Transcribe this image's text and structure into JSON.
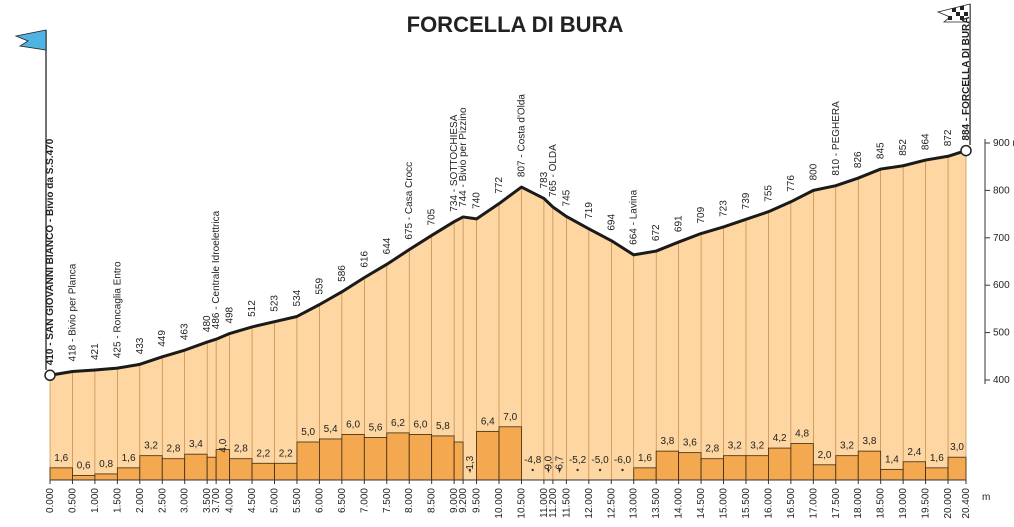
{
  "chart_data": {
    "type": "area",
    "title": "FORCELLA DI BURA",
    "x": [
      0,
      0.5,
      1,
      1.5,
      2,
      2.5,
      3,
      3.5,
      3.7,
      4,
      4.5,
      5,
      5.5,
      6,
      6.5,
      7,
      7.5,
      8,
      8.5,
      9,
      9.2,
      9.5,
      10,
      10.5,
      11,
      11.2,
      11.5,
      12,
      12.5,
      13,
      13.5,
      14,
      14.5,
      15,
      15.5,
      16,
      16.5,
      17,
      17.5,
      18,
      18.5,
      19,
      19.5,
      20,
      20.4
    ],
    "xlim": [
      0,
      20.4
    ],
    "xticks": [
      {
        "value": 0,
        "label": "0.000"
      },
      {
        "value": 0.5,
        "label": "0.500"
      },
      {
        "value": 1,
        "label": "1.000"
      },
      {
        "value": 1.5,
        "label": "1.500"
      },
      {
        "value": 2,
        "label": "2.000"
      },
      {
        "value": 2.5,
        "label": "2.500"
      },
      {
        "value": 3,
        "label": "3.000"
      },
      {
        "value": 3.5,
        "label": "3.500"
      },
      {
        "value": 3.7,
        "label": "3.700"
      },
      {
        "value": 4,
        "label": "4.000"
      },
      {
        "value": 4.5,
        "label": "4.500"
      },
      {
        "value": 5,
        "label": "5.000"
      },
      {
        "value": 5.5,
        "label": "5.500"
      },
      {
        "value": 6,
        "label": "6.000"
      },
      {
        "value": 6.5,
        "label": "6.500"
      },
      {
        "value": 7,
        "label": "7.000"
      },
      {
        "value": 7.5,
        "label": "7.500"
      },
      {
        "value": 8,
        "label": "8.000"
      },
      {
        "value": 8.5,
        "label": "8.500"
      },
      {
        "value": 9,
        "label": "9.000"
      },
      {
        "value": 9.2,
        "label": "9.200"
      },
      {
        "value": 9.5,
        "label": "9.500"
      },
      {
        "value": 10,
        "label": "10.000"
      },
      {
        "value": 10.5,
        "label": "10.500"
      },
      {
        "value": 11,
        "label": "11.000"
      },
      {
        "value": 11.2,
        "label": "11.200"
      },
      {
        "value": 11.5,
        "label": "11.500"
      },
      {
        "value": 12,
        "label": "12.000"
      },
      {
        "value": 12.5,
        "label": "12.500"
      },
      {
        "value": 13,
        "label": "13.000"
      },
      {
        "value": 13.5,
        "label": "13.500"
      },
      {
        "value": 14,
        "label": "14.000"
      },
      {
        "value": 14.5,
        "label": "14.500"
      },
      {
        "value": 15,
        "label": "15.000"
      },
      {
        "value": 15.5,
        "label": "15.500"
      },
      {
        "value": 16,
        "label": "16.000"
      },
      {
        "value": 16.5,
        "label": "16.500"
      },
      {
        "value": 17,
        "label": "17.000"
      },
      {
        "value": 17.5,
        "label": "17.500"
      },
      {
        "value": 18,
        "label": "18.000"
      },
      {
        "value": 18.5,
        "label": "18.500"
      },
      {
        "value": 19,
        "label": "19.000"
      },
      {
        "value": 19.5,
        "label": "19.500"
      },
      {
        "value": 20,
        "label": "20.000"
      },
      {
        "value": 20.4,
        "label": "20.400"
      }
    ],
    "x_unit": "m",
    "elevations": [
      410,
      418,
      421,
      425,
      433,
      449,
      463,
      480,
      486,
      498,
      512,
      523,
      534,
      559,
      586,
      616,
      644,
      675,
      705,
      734,
      744,
      740,
      772,
      807,
      783,
      765,
      745,
      719,
      694,
      664,
      672,
      691,
      709,
      723,
      739,
      755,
      776,
      800,
      810,
      826,
      845,
      852,
      864,
      872,
      884
    ],
    "point_labels": [
      "410 - SAN GIOVANNI BIANCO - Bivio da S.S.470",
      "418 - Bivio per Planca",
      "421",
      "425 - Roncaglia Entro",
      "433",
      "449",
      "463",
      "480",
      "486 - Centrale Idroelettrica",
      "498",
      "512",
      "523",
      "534",
      "559",
      "586",
      "616",
      "644",
      "675 - Casa Crocc",
      "705",
      "734 - SOTTOCHIESA",
      "744 - Bivio per Pizzino",
      "740",
      "772",
      "807 - Costa d'Olda",
      "783",
      "765 - OLDA",
      "745",
      "719",
      "694",
      "664 - Lavina",
      "672",
      "691",
      "709",
      "723",
      "739",
      "755",
      "776",
      "800",
      "810 - PEGHERA",
      "826",
      "845",
      "852",
      "864",
      "872",
      "884 - FORCELLA DI BURA"
    ],
    "ylim": [
      400,
      900
    ],
    "yticks": [
      400,
      500,
      600,
      700,
      800,
      {
        "value": 900,
        "label": "900 m"
      }
    ],
    "gradients": [
      1.6,
      0.6,
      0.8,
      1.6,
      3.2,
      2.8,
      3.4,
      3.0,
      4.0,
      2.8,
      2.2,
      2.2,
      5.0,
      5.4,
      6.0,
      5.6,
      6.2,
      6.0,
      5.8,
      5.0,
      -1.3,
      6.4,
      7.0,
      -4.8,
      -9.0,
      -6.7,
      -5.2,
      -5.0,
      -6.0,
      1.6,
      3.8,
      3.6,
      2.8,
      3.2,
      3.2,
      4.2,
      4.8,
      2.0,
      3.2,
      3.8,
      1.4,
      2.4,
      1.6,
      3.0
    ],
    "gradient_labels": [
      "1,6",
      "0,6",
      "0,8",
      "1,6",
      "3,2",
      "2,8",
      "3,4",
      null,
      "4,0",
      "2,8",
      "2,2",
      "2,2",
      "5,0",
      "5,4",
      "6,0",
      "5,6",
      "6,2",
      "6,0",
      "5,8",
      null,
      "-1,3",
      "6,4",
      "7,0",
      "-4,8",
      "-9,0",
      "-6,7",
      "-5,2",
      "-5,0",
      "-6,0",
      "1,6",
      "3,8",
      "3,6",
      "2,8",
      "3,2",
      "3,2",
      "4,2",
      "4,8",
      "2,0",
      "3,2",
      "3,8",
      "1,4",
      "2,4",
      "1,6",
      "3,0"
    ],
    "area_color": "#fdd6a2",
    "bar_color": "#f4a850",
    "line_color": "#1a1a1a"
  }
}
